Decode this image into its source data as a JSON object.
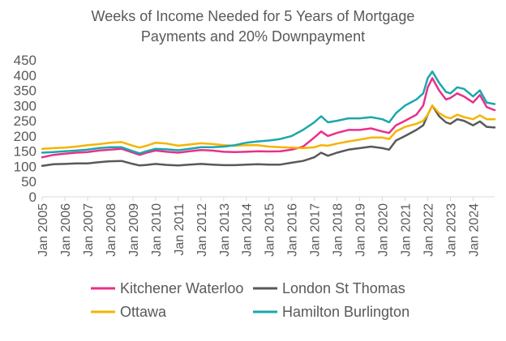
{
  "chart_data": {
    "type": "line",
    "title_lines": [
      "Weeks of Income Needed for 5 Years of Mortgage",
      "Payments and 20% Downpayment"
    ],
    "xlabel": "",
    "ylabel": "",
    "ylim": [
      0,
      450
    ],
    "yticks": [
      0,
      50,
      100,
      150,
      200,
      250,
      300,
      350,
      400,
      450
    ],
    "xlim": [
      2005.0,
      2024.95
    ],
    "xtick_labels": [
      "Jan 2005",
      "Jan 2006",
      "Jan 2007",
      "Jan 2008",
      "Jan 2009",
      "Jan 2010",
      "Jan 2011",
      "Jan 2012",
      "Jan 2013",
      "Jan 2014",
      "Jan 2015",
      "Jan 2016",
      "Jan 2017",
      "Jan 2018",
      "Jan 2019",
      "Jan 2020",
      "Jan 2021",
      "Jan 2022",
      "Jan 2023",
      "Jan 2024"
    ],
    "xtick_values": [
      2005,
      2006,
      2007,
      2008,
      2009,
      2010,
      2011,
      2012,
      2013,
      2014,
      2015,
      2016,
      2017,
      2018,
      2019,
      2020,
      2021,
      2022,
      2023,
      2024
    ],
    "grid": false,
    "legend_position": "bottom",
    "series": [
      {
        "name": "Kitchener Waterloo",
        "color": "#E8308A",
        "points": [
          [
            2005.0,
            130
          ],
          [
            2005.5,
            138
          ],
          [
            2006.0,
            142
          ],
          [
            2006.5,
            145
          ],
          [
            2007.0,
            147
          ],
          [
            2007.5,
            152
          ],
          [
            2008.0,
            155
          ],
          [
            2008.5,
            158
          ],
          [
            2009.0,
            145
          ],
          [
            2009.3,
            138
          ],
          [
            2009.6,
            145
          ],
          [
            2010.0,
            152
          ],
          [
            2010.5,
            148
          ],
          [
            2011.0,
            145
          ],
          [
            2011.5,
            150
          ],
          [
            2012.0,
            154
          ],
          [
            2012.5,
            152
          ],
          [
            2013.0,
            148
          ],
          [
            2013.5,
            147
          ],
          [
            2014.0,
            148
          ],
          [
            2014.5,
            150
          ],
          [
            2015.0,
            149
          ],
          [
            2015.5,
            150
          ],
          [
            2016.0,
            155
          ],
          [
            2016.5,
            165
          ],
          [
            2017.0,
            195
          ],
          [
            2017.3,
            215
          ],
          [
            2017.6,
            200
          ],
          [
            2018.0,
            210
          ],
          [
            2018.5,
            220
          ],
          [
            2019.0,
            220
          ],
          [
            2019.5,
            225
          ],
          [
            2020.0,
            215
          ],
          [
            2020.3,
            210
          ],
          [
            2020.6,
            235
          ],
          [
            2021.0,
            250
          ],
          [
            2021.5,
            270
          ],
          [
            2021.8,
            300
          ],
          [
            2022.0,
            360
          ],
          [
            2022.2,
            390
          ],
          [
            2022.5,
            350
          ],
          [
            2022.8,
            320
          ],
          [
            2023.0,
            325
          ],
          [
            2023.3,
            340
          ],
          [
            2023.6,
            330
          ],
          [
            2024.0,
            310
          ],
          [
            2024.3,
            335
          ],
          [
            2024.6,
            295
          ],
          [
            2024.95,
            285
          ]
        ]
      },
      {
        "name": "London St Thomas",
        "color": "#595959",
        "points": [
          [
            2005.0,
            102
          ],
          [
            2005.5,
            107
          ],
          [
            2006.0,
            108
          ],
          [
            2006.5,
            110
          ],
          [
            2007.0,
            110
          ],
          [
            2007.5,
            114
          ],
          [
            2008.0,
            117
          ],
          [
            2008.5,
            118
          ],
          [
            2009.0,
            108
          ],
          [
            2009.3,
            103
          ],
          [
            2009.6,
            105
          ],
          [
            2010.0,
            108
          ],
          [
            2010.5,
            105
          ],
          [
            2011.0,
            103
          ],
          [
            2011.5,
            106
          ],
          [
            2012.0,
            108
          ],
          [
            2012.5,
            106
          ],
          [
            2013.0,
            104
          ],
          [
            2013.5,
            104
          ],
          [
            2014.0,
            106
          ],
          [
            2014.5,
            107
          ],
          [
            2015.0,
            106
          ],
          [
            2015.5,
            106
          ],
          [
            2016.0,
            112
          ],
          [
            2016.5,
            118
          ],
          [
            2017.0,
            130
          ],
          [
            2017.3,
            145
          ],
          [
            2017.6,
            135
          ],
          [
            2018.0,
            145
          ],
          [
            2018.5,
            155
          ],
          [
            2019.0,
            160
          ],
          [
            2019.5,
            165
          ],
          [
            2020.0,
            160
          ],
          [
            2020.3,
            155
          ],
          [
            2020.6,
            185
          ],
          [
            2021.0,
            200
          ],
          [
            2021.5,
            220
          ],
          [
            2021.8,
            235
          ],
          [
            2022.0,
            270
          ],
          [
            2022.2,
            300
          ],
          [
            2022.5,
            265
          ],
          [
            2022.8,
            245
          ],
          [
            2023.0,
            240
          ],
          [
            2023.3,
            255
          ],
          [
            2023.6,
            250
          ],
          [
            2024.0,
            235
          ],
          [
            2024.3,
            248
          ],
          [
            2024.6,
            230
          ],
          [
            2024.95,
            228
          ]
        ]
      },
      {
        "name": "Ottawa",
        "color": "#F5B400",
        "points": [
          [
            2005.0,
            158
          ],
          [
            2005.5,
            160
          ],
          [
            2006.0,
            162
          ],
          [
            2006.5,
            165
          ],
          [
            2007.0,
            170
          ],
          [
            2007.5,
            173
          ],
          [
            2008.0,
            178
          ],
          [
            2008.5,
            180
          ],
          [
            2009.0,
            168
          ],
          [
            2009.3,
            162
          ],
          [
            2009.6,
            168
          ],
          [
            2010.0,
            178
          ],
          [
            2010.5,
            175
          ],
          [
            2011.0,
            168
          ],
          [
            2011.5,
            172
          ],
          [
            2012.0,
            176
          ],
          [
            2012.5,
            174
          ],
          [
            2013.0,
            170
          ],
          [
            2013.5,
            168
          ],
          [
            2014.0,
            170
          ],
          [
            2014.5,
            170
          ],
          [
            2015.0,
            165
          ],
          [
            2015.5,
            163
          ],
          [
            2016.0,
            162
          ],
          [
            2016.5,
            160
          ],
          [
            2017.0,
            163
          ],
          [
            2017.3,
            170
          ],
          [
            2017.6,
            168
          ],
          [
            2018.0,
            175
          ],
          [
            2018.5,
            182
          ],
          [
            2019.0,
            188
          ],
          [
            2019.5,
            195
          ],
          [
            2020.0,
            195
          ],
          [
            2020.3,
            190
          ],
          [
            2020.6,
            215
          ],
          [
            2021.0,
            230
          ],
          [
            2021.5,
            240
          ],
          [
            2021.8,
            250
          ],
          [
            2022.0,
            270
          ],
          [
            2022.2,
            300
          ],
          [
            2022.5,
            275
          ],
          [
            2022.8,
            262
          ],
          [
            2023.0,
            258
          ],
          [
            2023.3,
            270
          ],
          [
            2023.6,
            262
          ],
          [
            2024.0,
            255
          ],
          [
            2024.3,
            268
          ],
          [
            2024.6,
            255
          ],
          [
            2024.95,
            255
          ]
        ]
      },
      {
        "name": "Hamilton Burlington",
        "color": "#1AA7AD",
        "points": [
          [
            2005.0,
            145
          ],
          [
            2005.5,
            147
          ],
          [
            2006.0,
            150
          ],
          [
            2006.5,
            152
          ],
          [
            2007.0,
            155
          ],
          [
            2007.5,
            160
          ],
          [
            2008.0,
            163
          ],
          [
            2008.5,
            163
          ],
          [
            2009.0,
            150
          ],
          [
            2009.3,
            143
          ],
          [
            2009.6,
            150
          ],
          [
            2010.0,
            158
          ],
          [
            2010.5,
            156
          ],
          [
            2011.0,
            153
          ],
          [
            2011.5,
            158
          ],
          [
            2012.0,
            163
          ],
          [
            2012.5,
            163
          ],
          [
            2013.0,
            165
          ],
          [
            2013.5,
            170
          ],
          [
            2014.0,
            178
          ],
          [
            2014.5,
            182
          ],
          [
            2015.0,
            185
          ],
          [
            2015.5,
            190
          ],
          [
            2016.0,
            200
          ],
          [
            2016.5,
            220
          ],
          [
            2017.0,
            245
          ],
          [
            2017.3,
            265
          ],
          [
            2017.6,
            245
          ],
          [
            2018.0,
            250
          ],
          [
            2018.5,
            258
          ],
          [
            2019.0,
            258
          ],
          [
            2019.5,
            262
          ],
          [
            2020.0,
            255
          ],
          [
            2020.3,
            245
          ],
          [
            2020.6,
            275
          ],
          [
            2021.0,
            300
          ],
          [
            2021.5,
            320
          ],
          [
            2021.8,
            340
          ],
          [
            2022.0,
            390
          ],
          [
            2022.2,
            412
          ],
          [
            2022.5,
            375
          ],
          [
            2022.8,
            345
          ],
          [
            2023.0,
            340
          ],
          [
            2023.3,
            360
          ],
          [
            2023.6,
            355
          ],
          [
            2024.0,
            330
          ],
          [
            2024.3,
            350
          ],
          [
            2024.6,
            310
          ],
          [
            2024.95,
            305
          ]
        ]
      }
    ]
  }
}
